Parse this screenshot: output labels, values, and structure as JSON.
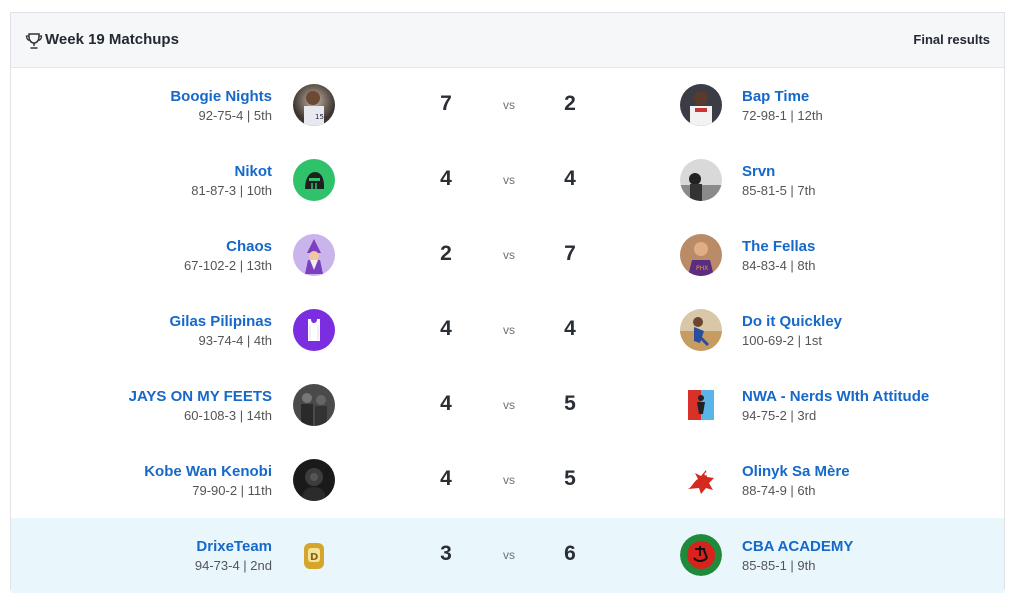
{
  "header": {
    "title": "Week 19 Matchups",
    "status": "Final results"
  },
  "vs_label": "vs",
  "matchups": [
    {
      "left": {
        "name": "Boogie Nights",
        "record": "92-75-4 | 5th",
        "score": "7",
        "avatar": "player-photo"
      },
      "right": {
        "name": "Bap Time",
        "record": "72-98-1 | 12th",
        "score": "2",
        "avatar": "player-photo"
      }
    },
    {
      "left": {
        "name": "Nikot",
        "record": "81-87-3 | 10th",
        "score": "4",
        "avatar": "knight-helmet"
      },
      "right": {
        "name": "Srvn",
        "record": "85-81-5 | 7th",
        "score": "4",
        "avatar": "bw-photo"
      }
    },
    {
      "left": {
        "name": "Chaos",
        "record": "67-102-2 | 13th",
        "score": "2",
        "avatar": "wizard"
      },
      "right": {
        "name": "The Fellas",
        "record": "84-83-4 | 8th",
        "score": "7",
        "avatar": "player-photo"
      }
    },
    {
      "left": {
        "name": "Gilas Pilipinas",
        "record": "93-74-4 | 4th",
        "score": "4",
        "avatar": "jersey"
      },
      "right": {
        "name": "Do it Quickley",
        "record": "100-69-2 | 1st",
        "score": "4",
        "avatar": "player-photo"
      }
    },
    {
      "left": {
        "name": "JAYS ON MY FEETS",
        "record": "60-108-3 | 14th",
        "score": "4",
        "avatar": "dark-photo"
      },
      "right": {
        "name": "NWA - Nerds WIth Attitude",
        "record": "94-75-2 | 3rd",
        "score": "5",
        "avatar": "split-jersey"
      }
    },
    {
      "left": {
        "name": "Kobe Wan Kenobi",
        "record": "79-90-2 | 11th",
        "score": "4",
        "avatar": "dark-photo"
      },
      "right": {
        "name": "Olinyk Sa Mère",
        "record": "88-74-9 | 6th",
        "score": "5",
        "avatar": "red-dragon"
      }
    },
    {
      "left": {
        "name": "DrixeTeam",
        "record": "94-73-4 | 2nd",
        "score": "3",
        "avatar": "gold-ring"
      },
      "right": {
        "name": "CBA ACADEMY",
        "record": "85-85-1 | 9th",
        "score": "6",
        "avatar": "red-emblem"
      },
      "highlighted": true
    }
  ],
  "colors": {
    "link": "#1668c9",
    "header_bg": "#f5f7f9",
    "highlight_bg": "#e9f6fc",
    "score": "#2a2f36"
  }
}
